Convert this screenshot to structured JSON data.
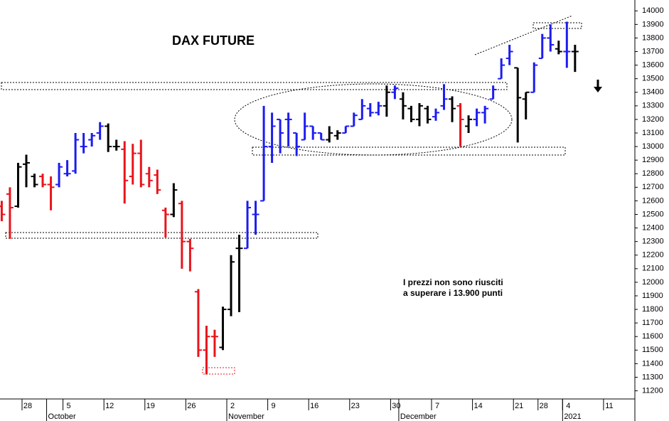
{
  "chart_data": {
    "type": "ohlc",
    "title": "DAX FUTURE",
    "annotation": [
      "I prezzi non sono riusciti",
      "a superare i 13.900 punti"
    ],
    "categories": [
      null,
      null,
      null,
      "28",
      null,
      null,
      null,
      null,
      "5",
      null,
      null,
      null,
      null,
      "12",
      null,
      null,
      null,
      null,
      "19",
      null,
      null,
      null,
      null,
      "26",
      null,
      null,
      null,
      null,
      "2",
      null,
      null,
      null,
      null,
      "9",
      null,
      null,
      null,
      null,
      "16",
      null,
      null,
      null,
      null,
      "23",
      null,
      null,
      null,
      null,
      "30",
      null,
      null,
      null,
      null,
      "7",
      null,
      null,
      null,
      null,
      "14",
      null,
      null,
      null,
      null,
      "21",
      null,
      null,
      "28",
      null,
      null,
      "4",
      null,
      null,
      null,
      null,
      "11"
    ],
    "months": [
      null,
      null,
      null,
      null,
      null,
      null,
      "October",
      null,
      null,
      null,
      null,
      null,
      null,
      null,
      null,
      null,
      null,
      null,
      null,
      null,
      null,
      null,
      null,
      null,
      null,
      null,
      null,
      null,
      "November",
      null,
      null,
      null,
      null,
      null,
      null,
      null,
      null,
      null,
      null,
      null,
      null,
      null,
      null,
      null,
      null,
      null,
      null,
      null,
      null,
      "December",
      null,
      null,
      null,
      null,
      null,
      null,
      null,
      null,
      null,
      null,
      null,
      null,
      null,
      null,
      null,
      null,
      null,
      null,
      null,
      "2021",
      null,
      null,
      null,
      null,
      null
    ],
    "open": [
      12560,
      12650,
      12560,
      12870,
      12780,
      12780,
      12720,
      12720,
      12800,
      12820,
      13000,
      13050,
      13100,
      13150,
      13000,
      12980,
      12780,
      12950,
      12800,
      12790,
      12530,
      12500,
      12580,
      12300,
      11930,
      11500,
      11600,
      11520,
      11800,
      12250,
      12250,
      12500,
      12600,
      13000,
      13200,
      13200,
      13100,
      13050,
      13150,
      13100,
      13050,
      13080,
      13100,
      13150,
      13200,
      13280,
      13250,
      13300,
      13400,
      13350,
      13280,
      13200,
      13280,
      13220,
      13300,
      13350,
      13300,
      13150,
      13200,
      13250,
      13350,
      13500,
      13650,
      13580,
      13350,
      13400,
      13650,
      13800,
      13720,
      13700,
      13700,
      null,
      null,
      null,
      null
    ],
    "high": [
      12600,
      12700,
      12880,
      12940,
      12800,
      12800,
      12780,
      12880,
      12900,
      13100,
      13100,
      13100,
      13180,
      13170,
      13050,
      13040,
      13020,
      13050,
      12850,
      12830,
      12550,
      12730,
      12600,
      12320,
      11950,
      11680,
      11650,
      11820,
      12200,
      12350,
      12600,
      12600,
      13300,
      13250,
      13200,
      13250,
      13100,
      13250,
      13150,
      13100,
      13150,
      13120,
      13150,
      13250,
      13350,
      13320,
      13330,
      13450,
      13450,
      13400,
      13300,
      13320,
      13300,
      13280,
      13460,
      13370,
      13320,
      13230,
      13280,
      13300,
      13450,
      13650,
      13750,
      13580,
      13400,
      13620,
      13830,
      13900,
      13780,
      13920,
      13750,
      null,
      null,
      null,
      null
    ],
    "low": [
      12450,
      12320,
      12550,
      12700,
      12700,
      12700,
      12530,
      12700,
      12780,
      12800,
      12950,
      13000,
      13050,
      12960,
      12970,
      12580,
      12720,
      12700,
      12700,
      12650,
      12330,
      12480,
      12100,
      12080,
      11450,
      11320,
      11450,
      11500,
      11750,
      11780,
      12250,
      12350,
      12600,
      12880,
      12950,
      13000,
      12930,
      13050,
      13050,
      13050,
      13030,
      13050,
      13100,
      13150,
      13200,
      13220,
      13230,
      13220,
      13350,
      13200,
      13180,
      13150,
      13170,
      13190,
      13270,
      13180,
      13000,
      13100,
      13150,
      13170,
      13350,
      13500,
      13600,
      13030,
      13200,
      13400,
      13650,
      13700,
      13680,
      13580,
      13550,
      null,
      null,
      null,
      null
    ],
    "close": [
      12500,
      12550,
      12850,
      12880,
      12720,
      12720,
      12700,
      12850,
      12800,
      13050,
      13000,
      13080,
      13150,
      13000,
      13000,
      12750,
      12950,
      12720,
      12750,
      12680,
      12500,
      12680,
      12300,
      12250,
      11500,
      11600,
      11600,
      11800,
      12150,
      12250,
      12550,
      12500,
      13000,
      13150,
      13100,
      13200,
      13000,
      13150,
      13100,
      13050,
      13100,
      13100,
      13150,
      13230,
      13300,
      13250,
      13300,
      13400,
      13430,
      13300,
      13200,
      13300,
      13200,
      13250,
      13350,
      13280,
      13200,
      13200,
      13250,
      13280,
      13420,
      13600,
      13700,
      13360,
      13400,
      13600,
      13800,
      13750,
      13700,
      13700,
      13700,
      null,
      null,
      null,
      null
    ],
    "palette": {
      "red": "#e8141b",
      "black": "#000000",
      "blue": "#1c1cf0"
    },
    "bar_colors": [
      "red",
      "red",
      "black",
      "black",
      "black",
      "red",
      "red",
      "blue",
      "blue",
      "blue",
      "blue",
      "blue",
      "blue",
      "black",
      "black",
      "red",
      "red",
      "red",
      "red",
      "red",
      "red",
      "black",
      "red",
      "red",
      "red",
      "red",
      "red",
      "black",
      "black",
      "black",
      "blue",
      "blue",
      "blue",
      "blue",
      "blue",
      "blue",
      "blue",
      "blue",
      "blue",
      "blue",
      "black",
      "black",
      "blue",
      "blue",
      "blue",
      "blue",
      "blue",
      "black",
      "blue",
      "black",
      "black",
      "black",
      "black",
      "blue",
      "blue",
      "black",
      "red",
      "black",
      "blue",
      "blue",
      "blue",
      "blue",
      "blue",
      "black",
      "black",
      "blue",
      "blue",
      "blue",
      "black",
      "blue",
      "black",
      null,
      null,
      null,
      null
    ],
    "ylim": [
      11140,
      14080
    ],
    "yticks": [
      11200,
      11300,
      11400,
      11500,
      11600,
      11700,
      11800,
      11900,
      12000,
      12100,
      12200,
      12300,
      12400,
      12500,
      12600,
      12700,
      12800,
      12900,
      13000,
      13100,
      13200,
      13300,
      13400,
      13500,
      13600,
      13700,
      13800,
      13900,
      14000
    ]
  }
}
